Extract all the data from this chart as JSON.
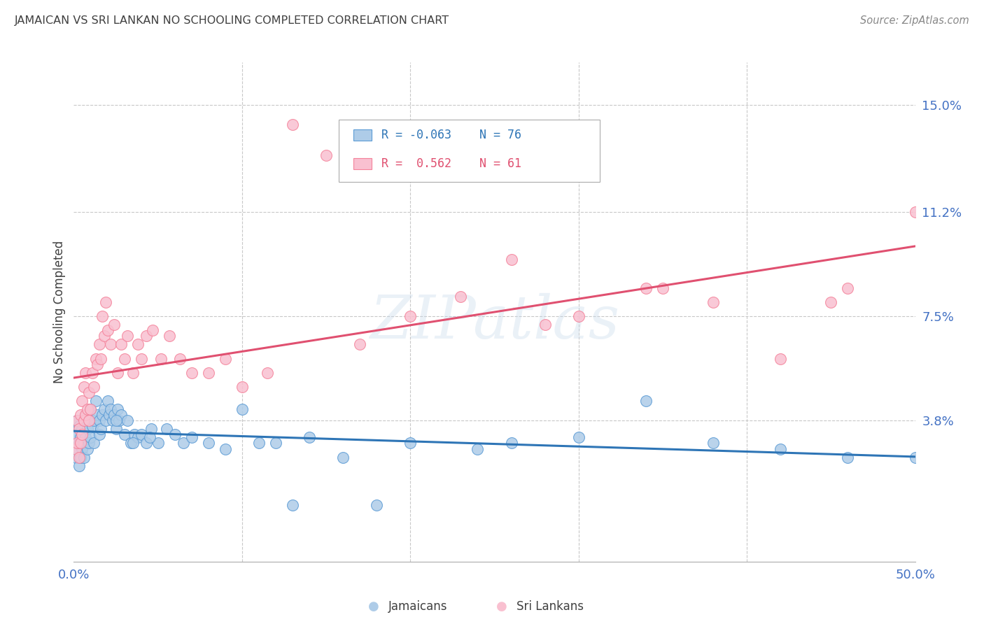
{
  "title": "JAMAICAN VS SRI LANKAN NO SCHOOLING COMPLETED CORRELATION CHART",
  "source": "Source: ZipAtlas.com",
  "xlabel_jamaicans": "Jamaicans",
  "xlabel_srilankans": "Sri Lankans",
  "ylabel": "No Schooling Completed",
  "xlim": [
    0.0,
    0.5
  ],
  "ylim": [
    -0.012,
    0.165
  ],
  "ytick_positions": [
    0.038,
    0.075,
    0.112,
    0.15
  ],
  "ytick_labels": [
    "3.8%",
    "7.5%",
    "11.2%",
    "15.0%"
  ],
  "legend_blue_r": "R = -0.063",
  "legend_blue_n": "N = 76",
  "legend_pink_r": "R =  0.562",
  "legend_pink_n": "N = 61",
  "blue_scatter_color": "#aecce8",
  "pink_scatter_color": "#f9c0d0",
  "blue_border_color": "#5b9bd5",
  "pink_border_color": "#f4829a",
  "blue_line_color": "#2e75b6",
  "pink_line_color": "#e05070",
  "grid_color": "#c8c8c8",
  "axis_label_color": "#4472c4",
  "title_color": "#404040",
  "watermark": "ZIPatlas",
  "jamaicans_x": [
    0.001,
    0.001,
    0.002,
    0.002,
    0.003,
    0.003,
    0.003,
    0.004,
    0.004,
    0.005,
    0.005,
    0.006,
    0.006,
    0.006,
    0.007,
    0.007,
    0.008,
    0.008,
    0.009,
    0.009,
    0.01,
    0.01,
    0.011,
    0.012,
    0.012,
    0.013,
    0.014,
    0.015,
    0.015,
    0.016,
    0.017,
    0.018,
    0.019,
    0.02,
    0.021,
    0.022,
    0.023,
    0.024,
    0.025,
    0.026,
    0.027,
    0.028,
    0.03,
    0.032,
    0.034,
    0.036,
    0.038,
    0.04,
    0.043,
    0.046,
    0.05,
    0.055,
    0.06,
    0.065,
    0.07,
    0.08,
    0.09,
    0.1,
    0.11,
    0.12,
    0.14,
    0.16,
    0.18,
    0.2,
    0.24,
    0.26,
    0.3,
    0.34,
    0.38,
    0.42,
    0.46,
    0.5,
    0.025,
    0.035,
    0.045,
    0.13
  ],
  "jamaicans_y": [
    0.025,
    0.033,
    0.028,
    0.038,
    0.022,
    0.03,
    0.036,
    0.025,
    0.032,
    0.028,
    0.035,
    0.03,
    0.025,
    0.038,
    0.032,
    0.04,
    0.028,
    0.035,
    0.03,
    0.038,
    0.032,
    0.042,
    0.036,
    0.03,
    0.038,
    0.045,
    0.04,
    0.033,
    0.038,
    0.035,
    0.04,
    0.042,
    0.038,
    0.045,
    0.04,
    0.042,
    0.038,
    0.04,
    0.035,
    0.042,
    0.038,
    0.04,
    0.033,
    0.038,
    0.03,
    0.033,
    0.032,
    0.033,
    0.03,
    0.035,
    0.03,
    0.035,
    0.033,
    0.03,
    0.032,
    0.03,
    0.028,
    0.042,
    0.03,
    0.03,
    0.032,
    0.025,
    0.008,
    0.03,
    0.028,
    0.03,
    0.032,
    0.045,
    0.03,
    0.028,
    0.025,
    0.025,
    0.038,
    0.03,
    0.032,
    0.008
  ],
  "srilankans_x": [
    0.001,
    0.002,
    0.002,
    0.003,
    0.003,
    0.004,
    0.004,
    0.005,
    0.005,
    0.006,
    0.006,
    0.007,
    0.007,
    0.008,
    0.009,
    0.009,
    0.01,
    0.011,
    0.012,
    0.013,
    0.014,
    0.015,
    0.016,
    0.017,
    0.018,
    0.019,
    0.02,
    0.022,
    0.024,
    0.026,
    0.028,
    0.03,
    0.032,
    0.035,
    0.038,
    0.04,
    0.043,
    0.047,
    0.052,
    0.057,
    0.063,
    0.07,
    0.08,
    0.09,
    0.1,
    0.115,
    0.13,
    0.15,
    0.17,
    0.2,
    0.23,
    0.26,
    0.3,
    0.34,
    0.38,
    0.42,
    0.46,
    0.5,
    0.28,
    0.35,
    0.45
  ],
  "srilankans_y": [
    0.028,
    0.03,
    0.038,
    0.025,
    0.035,
    0.03,
    0.04,
    0.033,
    0.045,
    0.038,
    0.05,
    0.04,
    0.055,
    0.042,
    0.038,
    0.048,
    0.042,
    0.055,
    0.05,
    0.06,
    0.058,
    0.065,
    0.06,
    0.075,
    0.068,
    0.08,
    0.07,
    0.065,
    0.072,
    0.055,
    0.065,
    0.06,
    0.068,
    0.055,
    0.065,
    0.06,
    0.068,
    0.07,
    0.06,
    0.068,
    0.06,
    0.055,
    0.055,
    0.06,
    0.05,
    0.055,
    0.143,
    0.132,
    0.065,
    0.075,
    0.082,
    0.095,
    0.075,
    0.085,
    0.08,
    0.06,
    0.085,
    0.112,
    0.072,
    0.085,
    0.08
  ]
}
